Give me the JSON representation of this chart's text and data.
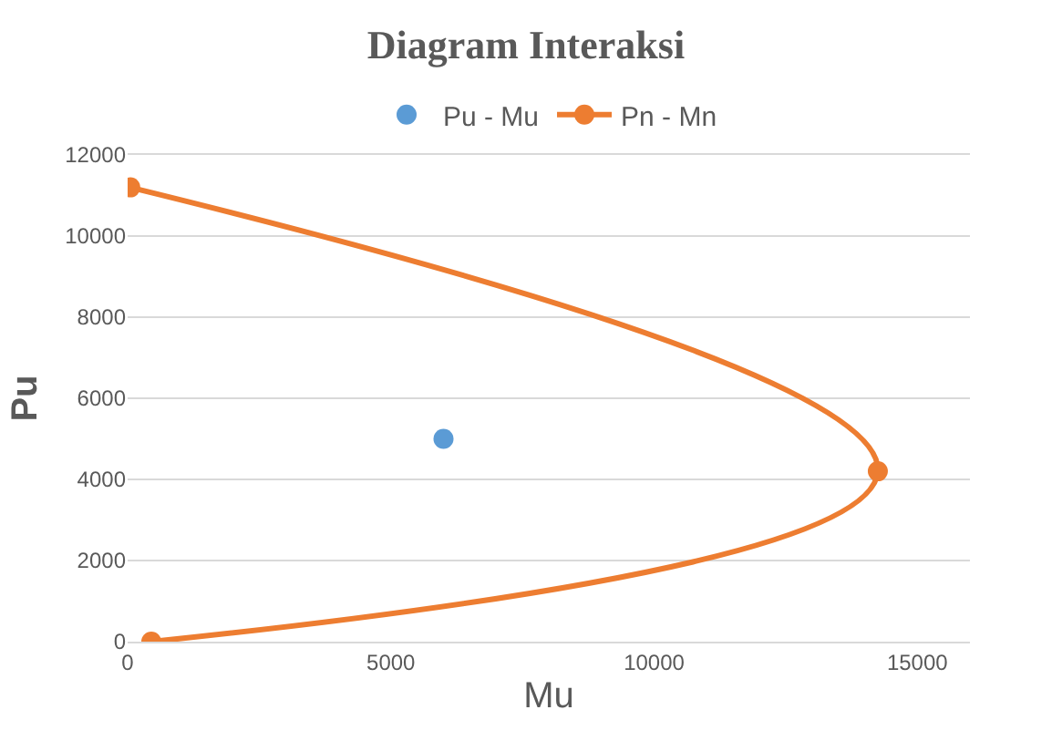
{
  "chart_data": {
    "type": "scatter",
    "title": "Diagram Interaksi",
    "xlabel": "Mu",
    "ylabel": "Pu",
    "series": [
      {
        "name": "Pu - Mu",
        "color": "#5b9bd5",
        "x": [
          6000
        ],
        "values": [
          5000
        ]
      },
      {
        "name": "Pn - Mn",
        "type": "line",
        "color": "#ed7d31",
        "x": [
          50,
          14250,
          450
        ],
        "values": [
          11200,
          4200,
          0
        ]
      }
    ],
    "xlim": [
      0,
      16000
    ],
    "xticks": [
      0,
      5000,
      10000,
      15000
    ],
    "ylim": [
      0,
      12000
    ],
    "yticks": [
      0,
      2000,
      4000,
      6000,
      8000,
      10000,
      12000
    ],
    "grid": "y",
    "legend": "top",
    "marker": "circle",
    "line_style": "solid"
  }
}
